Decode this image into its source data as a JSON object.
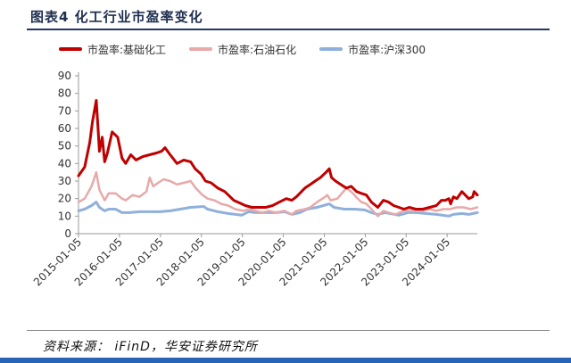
{
  "figure": {
    "title": "图表4   化工行业市盈率变化",
    "source": "资料来源： iFinD，华安证券研究所"
  },
  "chart_data": {
    "type": "line",
    "title": "",
    "xlabel": "",
    "ylabel": "",
    "ylim": [
      0,
      90
    ],
    "yticks": [
      0,
      10,
      20,
      30,
      40,
      50,
      60,
      70,
      80,
      90
    ],
    "xlim": [
      "2015-01-05",
      "2024-09-30"
    ],
    "xticks": [
      "2015-01-05",
      "2016-01-05",
      "2017-01-05",
      "2018-01-05",
      "2019-01-05",
      "2020-01-05",
      "2021-01-05",
      "2022-01-05",
      "2023-01-05",
      "2024-01-05"
    ],
    "grid": false,
    "legend_position": "top",
    "series": [
      {
        "name": "市盈率:基础化工",
        "color": "#c00000",
        "points": [
          [
            "2015-01-05",
            33
          ],
          [
            "2015-03-01",
            38
          ],
          [
            "2015-04-15",
            52
          ],
          [
            "2015-05-10",
            64
          ],
          [
            "2015-06-12",
            76
          ],
          [
            "2015-06-28",
            60
          ],
          [
            "2015-07-10",
            47
          ],
          [
            "2015-08-05",
            55
          ],
          [
            "2015-08-26",
            41
          ],
          [
            "2015-09-20",
            46
          ],
          [
            "2015-11-01",
            58
          ],
          [
            "2015-12-20",
            55
          ],
          [
            "2016-01-28",
            43
          ],
          [
            "2016-03-01",
            40
          ],
          [
            "2016-04-15",
            45
          ],
          [
            "2016-06-01",
            42
          ],
          [
            "2016-08-01",
            44
          ],
          [
            "2016-10-01",
            45
          ],
          [
            "2016-12-01",
            46
          ],
          [
            "2017-01-15",
            47
          ],
          [
            "2017-02-15",
            49
          ],
          [
            "2017-04-01",
            45
          ],
          [
            "2017-06-01",
            40
          ],
          [
            "2017-08-01",
            42
          ],
          [
            "2017-10-01",
            41
          ],
          [
            "2017-11-10",
            37
          ],
          [
            "2018-01-01",
            34
          ],
          [
            "2018-02-10",
            30
          ],
          [
            "2018-04-01",
            29
          ],
          [
            "2018-06-01",
            26
          ],
          [
            "2018-08-01",
            24
          ],
          [
            "2018-10-20",
            19
          ],
          [
            "2018-12-31",
            17
          ],
          [
            "2019-02-01",
            16
          ],
          [
            "2019-04-01",
            15
          ],
          [
            "2019-06-01",
            15
          ],
          [
            "2019-08-01",
            15
          ],
          [
            "2019-10-01",
            16
          ],
          [
            "2019-12-01",
            18
          ],
          [
            "2020-02-01",
            20
          ],
          [
            "2020-03-20",
            19
          ],
          [
            "2020-05-01",
            21
          ],
          [
            "2020-07-15",
            26
          ],
          [
            "2020-09-01",
            28
          ],
          [
            "2020-10-15",
            30
          ],
          [
            "2020-12-01",
            32
          ],
          [
            "2021-01-20",
            35
          ],
          [
            "2021-02-18",
            37
          ],
          [
            "2021-03-10",
            32
          ],
          [
            "2021-04-15",
            30
          ],
          [
            "2021-06-01",
            28
          ],
          [
            "2021-07-20",
            26
          ],
          [
            "2021-09-01",
            27
          ],
          [
            "2021-10-20",
            24
          ],
          [
            "2021-12-01",
            23
          ],
          [
            "2022-01-15",
            22
          ],
          [
            "2022-03-01",
            18
          ],
          [
            "2022-04-27",
            15
          ],
          [
            "2022-06-15",
            19
          ],
          [
            "2022-08-01",
            18
          ],
          [
            "2022-09-15",
            16
          ],
          [
            "2022-11-01",
            15
          ],
          [
            "2022-12-15",
            14
          ],
          [
            "2023-02-01",
            15
          ],
          [
            "2023-04-01",
            14
          ],
          [
            "2023-06-01",
            14
          ],
          [
            "2023-08-01",
            15
          ],
          [
            "2023-10-01",
            16
          ],
          [
            "2023-11-15",
            19
          ],
          [
            "2023-12-20",
            19
          ],
          [
            "2024-01-20",
            20
          ],
          [
            "2024-02-05",
            17
          ],
          [
            "2024-03-01",
            21
          ],
          [
            "2024-04-01",
            20
          ],
          [
            "2024-05-15",
            24
          ],
          [
            "2024-06-15",
            22
          ],
          [
            "2024-07-15",
            20
          ],
          [
            "2024-08-20",
            21
          ],
          [
            "2024-09-01",
            24
          ],
          [
            "2024-09-30",
            22
          ]
        ]
      },
      {
        "name": "市盈率:石油石化",
        "color": "#e8a9a9",
        "points": [
          [
            "2015-01-05",
            18
          ],
          [
            "2015-03-01",
            20
          ],
          [
            "2015-05-01",
            27
          ],
          [
            "2015-06-12",
            35
          ],
          [
            "2015-07-10",
            25
          ],
          [
            "2015-08-26",
            19
          ],
          [
            "2015-10-01",
            23
          ],
          [
            "2015-12-01",
            23
          ],
          [
            "2016-01-28",
            20
          ],
          [
            "2016-03-01",
            19
          ],
          [
            "2016-05-01",
            22
          ],
          [
            "2016-07-01",
            21
          ],
          [
            "2016-09-01",
            24
          ],
          [
            "2016-10-01",
            32
          ],
          [
            "2016-11-01",
            27
          ],
          [
            "2016-12-15",
            29
          ],
          [
            "2017-02-01",
            31
          ],
          [
            "2017-04-01",
            30
          ],
          [
            "2017-06-01",
            28
          ],
          [
            "2017-08-01",
            29
          ],
          [
            "2017-10-01",
            30
          ],
          [
            "2017-11-15",
            26
          ],
          [
            "2018-01-15",
            22
          ],
          [
            "2018-03-01",
            20
          ],
          [
            "2018-05-01",
            19
          ],
          [
            "2018-07-01",
            17
          ],
          [
            "2018-09-01",
            16
          ],
          [
            "2018-11-01",
            14
          ],
          [
            "2019-01-15",
            13
          ],
          [
            "2019-03-01",
            14
          ],
          [
            "2019-05-01",
            13
          ],
          [
            "2019-07-01",
            12
          ],
          [
            "2019-09-01",
            13
          ],
          [
            "2019-11-01",
            12
          ],
          [
            "2020-01-15",
            13
          ],
          [
            "2020-03-20",
            11
          ],
          [
            "2020-05-01",
            13
          ],
          [
            "2020-07-15",
            14
          ],
          [
            "2020-09-01",
            15
          ],
          [
            "2020-11-01",
            18
          ],
          [
            "2020-12-20",
            20
          ],
          [
            "2021-02-01",
            22
          ],
          [
            "2021-03-01",
            19
          ],
          [
            "2021-05-01",
            20
          ],
          [
            "2021-07-20",
            26
          ],
          [
            "2021-09-01",
            24
          ],
          [
            "2021-10-15",
            21
          ],
          [
            "2021-12-01",
            18
          ],
          [
            "2022-01-15",
            17
          ],
          [
            "2022-03-01",
            14
          ],
          [
            "2022-04-27",
            10
          ],
          [
            "2022-06-15",
            13
          ],
          [
            "2022-08-01",
            12
          ],
          [
            "2022-10-01",
            11
          ],
          [
            "2022-12-15",
            13
          ],
          [
            "2023-02-01",
            13
          ],
          [
            "2023-04-01",
            13
          ],
          [
            "2023-06-01",
            13
          ],
          [
            "2023-08-01",
            14
          ],
          [
            "2023-10-01",
            13
          ],
          [
            "2023-12-01",
            14
          ],
          [
            "2024-02-01",
            14
          ],
          [
            "2024-04-01",
            15
          ],
          [
            "2024-06-01",
            15
          ],
          [
            "2024-08-01",
            14
          ],
          [
            "2024-09-30",
            15
          ]
        ]
      },
      {
        "name": "市盈率:沪深300",
        "color": "#8fb0dc",
        "points": [
          [
            "2015-01-05",
            13
          ],
          [
            "2015-03-01",
            14
          ],
          [
            "2015-05-01",
            16
          ],
          [
            "2015-06-12",
            18
          ],
          [
            "2015-07-10",
            15
          ],
          [
            "2015-08-26",
            13
          ],
          [
            "2015-10-01",
            14
          ],
          [
            "2015-12-01",
            14
          ],
          [
            "2016-01-28",
            12
          ],
          [
            "2016-04-01",
            12
          ],
          [
            "2016-07-01",
            12.5
          ],
          [
            "2016-10-01",
            12.5
          ],
          [
            "2017-01-01",
            12.5
          ],
          [
            "2017-04-01",
            13
          ],
          [
            "2017-07-01",
            14
          ],
          [
            "2017-10-01",
            15
          ],
          [
            "2018-01-25",
            15.5
          ],
          [
            "2018-03-01",
            14
          ],
          [
            "2018-06-01",
            12.5
          ],
          [
            "2018-09-01",
            11.5
          ],
          [
            "2018-12-31",
            10.5
          ],
          [
            "2019-03-01",
            12.5
          ],
          [
            "2019-05-01",
            12
          ],
          [
            "2019-08-01",
            12
          ],
          [
            "2019-11-01",
            12
          ],
          [
            "2020-01-15",
            12.5
          ],
          [
            "2020-03-20",
            11
          ],
          [
            "2020-06-01",
            12
          ],
          [
            "2020-08-01",
            14
          ],
          [
            "2020-11-01",
            15
          ],
          [
            "2021-02-18",
            17
          ],
          [
            "2021-04-01",
            15
          ],
          [
            "2021-07-01",
            14
          ],
          [
            "2021-10-01",
            14
          ],
          [
            "2021-12-31",
            13.5
          ],
          [
            "2022-03-01",
            12
          ],
          [
            "2022-04-27",
            11
          ],
          [
            "2022-07-01",
            12
          ],
          [
            "2022-10-31",
            10.5
          ],
          [
            "2023-01-20",
            12
          ],
          [
            "2023-04-01",
            12
          ],
          [
            "2023-07-01",
            11.5
          ],
          [
            "2023-10-01",
            11
          ],
          [
            "2024-01-20",
            10
          ],
          [
            "2024-03-01",
            11
          ],
          [
            "2024-05-15",
            11.5
          ],
          [
            "2024-07-15",
            11
          ],
          [
            "2024-09-30",
            12
          ]
        ]
      }
    ]
  }
}
